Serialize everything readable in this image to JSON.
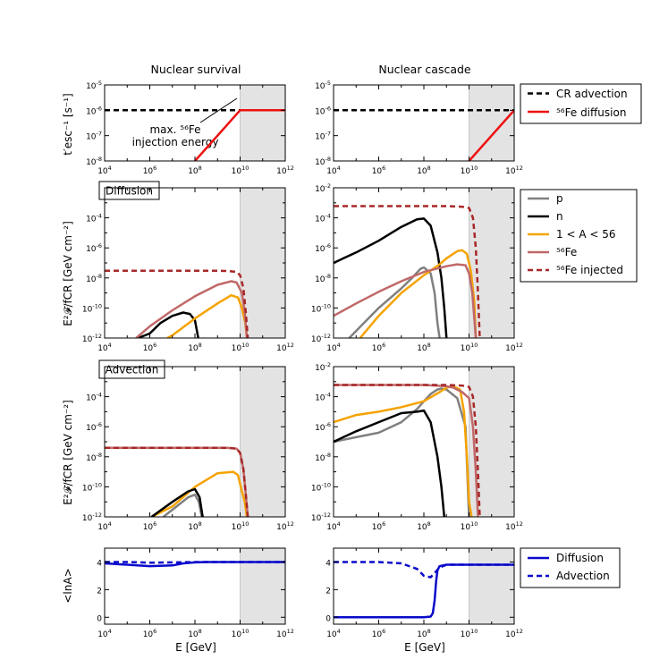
{
  "column_titles": [
    "Nuclear survival",
    "Nuclear cascade"
  ],
  "labels": {
    "rate_ylabel": "t′esc⁻¹ [s⁻¹]",
    "flux_ylabel": "E²𝓕/fCR [GeV cm⁻²]",
    "lnA_ylabel": "<lnA>",
    "xlabel": "E [GeV]"
  },
  "annotation": {
    "line1": "max. ⁵⁶Fe",
    "line2": "injection energy"
  },
  "row_boxes": [
    "Diffusion",
    "Advection"
  ],
  "legends": {
    "rate": [
      {
        "label": "CR advection",
        "color": "#000000",
        "dash": true
      },
      {
        "label": "⁵⁶Fe diffusion",
        "color": "#ee1111",
        "dash": false
      }
    ],
    "flux": [
      {
        "label": "p",
        "color": "#808080",
        "dash": false
      },
      {
        "label": "n",
        "color": "#000000",
        "dash": false
      },
      {
        "label": "1 < A < 56",
        "color": "#f5a300",
        "dash": false
      },
      {
        "label": "⁵⁶Fe",
        "color": "#c06868",
        "dash": false
      },
      {
        "label": "⁵⁶Fe injected",
        "color": "#a82828",
        "dash": true
      }
    ],
    "lnA": [
      {
        "label": "Diffusion",
        "color": "#0a0acc",
        "dash": false
      },
      {
        "label": "Advection",
        "color": "#0a0acc",
        "dash": true
      }
    ]
  },
  "chart_data": [
    {
      "id": "rate-survival",
      "type": "line",
      "xscale": "log",
      "yscale": "log",
      "xlim": [
        10000.0,
        1000000000000.0
      ],
      "ylim": [
        1e-08,
        1e-05
      ],
      "shade_from": 10000000000.0,
      "xticks": [
        "10^4",
        "10^6",
        "10^8",
        "10^10",
        "10^12"
      ],
      "yticks": [
        "10^-8",
        "10^-7",
        "10^-6",
        "10^-5"
      ],
      "series": [
        {
          "name": "CR advection",
          "x": [
            10000.0,
            1000000000000.0
          ],
          "y": [
            1e-06,
            1e-06
          ]
        },
        {
          "name": "56Fe diffusion",
          "x": [
            100000000.0,
            10000000000.0,
            1000000000000.0
          ],
          "y": [
            1e-08,
            1e-06,
            1e-06
          ]
        }
      ]
    },
    {
      "id": "rate-cascade",
      "type": "line",
      "xscale": "log",
      "yscale": "log",
      "xlim": [
        10000.0,
        1000000000000.0
      ],
      "ylim": [
        1e-08,
        1e-05
      ],
      "shade_from": 10000000000.0,
      "xticks": [
        "10^4",
        "10^6",
        "10^8",
        "10^10",
        "10^12"
      ],
      "yticks": [
        "10^-8",
        "10^-7",
        "10^-6",
        "10^-5"
      ],
      "series": [
        {
          "name": "CR advection",
          "x": [
            10000.0,
            1000000000000.0
          ],
          "y": [
            1e-06,
            1e-06
          ]
        },
        {
          "name": "56Fe diffusion",
          "x": [
            10000000000.0,
            1000000000000.0
          ],
          "y": [
            1e-08,
            1e-06
          ]
        }
      ]
    },
    {
      "id": "flux-diffusion-survival",
      "type": "line",
      "xscale": "log",
      "yscale": "log",
      "xlim": [
        10000.0,
        1000000000000.0
      ],
      "ylim": [
        1e-12,
        0.01
      ],
      "shade_from": 10000000000.0,
      "xticks": [
        "10^4",
        "10^6",
        "10^8",
        "10^10",
        "10^12"
      ],
      "yticks": [
        "10^-12",
        "10^-10",
        "10^-8",
        "10^-6",
        "10^-4"
      ],
      "series": [
        {
          "name": "n",
          "x": [
            300000.0,
            1000000.0,
            3000000.0,
            10000000.0,
            30000000.0,
            60000000.0,
            100000000.0,
            140000000.0
          ],
          "y": [
            1e-12,
            2e-12,
            1e-11,
            3e-11,
            5e-11,
            4e-11,
            1.5e-11,
            1e-12
          ]
        },
        {
          "name": "1 < A < 56",
          "x": [
            6000000.0,
            10000000.0,
            100000000.0,
            1000000000.0,
            4000000000.0,
            8000000000.0,
            12000000000.0,
            17000000000.0,
            20000000000.0
          ],
          "y": [
            1e-12,
            1.5e-12,
            2e-11,
            2e-10,
            7e-10,
            5e-10,
            1e-10,
            1e-11,
            1e-12
          ]
        },
        {
          "name": "56Fe",
          "x": [
            250000.0,
            1000000.0,
            10000000.0,
            100000000.0,
            1000000000.0,
            4000000000.0,
            7000000000.0,
            12000000000.0,
            16000000000.0,
            20000000000.0
          ],
          "y": [
            1e-12,
            6e-12,
            7e-11,
            6e-10,
            3.5e-09,
            6e-09,
            5e-09,
            1e-09,
            5e-11,
            1e-12
          ]
        },
        {
          "name": "56Fe injected",
          "x": [
            10000.0,
            1000000.0,
            100000000.0,
            1000000000.0,
            3000000000.0,
            7000000000.0,
            10000000000.0,
            14000000000.0,
            18000000000.0,
            22000000000.0
          ],
          "y": [
            3e-08,
            3e-08,
            3e-08,
            3e-08,
            2.9e-08,
            2.5e-08,
            1.5e-08,
            2e-09,
            5e-11,
            1e-12
          ]
        }
      ]
    },
    {
      "id": "flux-diffusion-cascade",
      "type": "line",
      "xscale": "log",
      "yscale": "log",
      "xlim": [
        10000.0,
        1000000000000.0
      ],
      "ylim": [
        1e-12,
        0.01
      ],
      "shade_from": 10000000000.0,
      "xticks": [
        "10^4",
        "10^6",
        "10^8",
        "10^10",
        "10^12"
      ],
      "yticks": [
        "10^-12",
        "10^-10",
        "10^-8",
        "10^-6",
        "10^-4",
        "10^-2"
      ],
      "series": [
        {
          "name": "p",
          "x": [
            50000.0,
            100000.0,
            1000000.0,
            10000000.0,
            30000000.0,
            70000000.0,
            100000000.0,
            200000000.0,
            300000000.0,
            400000000.0,
            500000000.0
          ],
          "y": [
            1e-12,
            3e-12,
            1e-10,
            2e-09,
            1e-08,
            4e-08,
            5e-08,
            2e-08,
            1e-09,
            1e-11,
            1e-12
          ]
        },
        {
          "name": "n",
          "x": [
            10000.0,
            100000.0,
            1000000.0,
            10000000.0,
            50000000.0,
            100000000.0,
            200000000.0,
            400000000.0,
            600000000.0,
            800000000.0,
            1000000000.0
          ],
          "y": [
            1e-07,
            5e-07,
            3e-06,
            2.5e-05,
            8e-05,
            9e-05,
            3e-05,
            5e-07,
            1e-08,
            1e-10,
            1e-12
          ]
        },
        {
          "name": "1 < A < 56",
          "x": [
            150000.0,
            1000000.0,
            10000000.0,
            100000000.0,
            500000000.0,
            1000000000.0,
            3000000000.0,
            5000000000.0,
            8000000000.0,
            12000000000.0,
            17000000000.0,
            20000000000.0
          ],
          "y": [
            1e-12,
            3e-11,
            1e-09,
            1.5e-08,
            8e-08,
            2e-07,
            6e-07,
            7e-07,
            4e-07,
            3e-08,
            3e-10,
            1e-12
          ]
        },
        {
          "name": "56Fe",
          "x": [
            10000.0,
            100000.0,
            1000000.0,
            10000000.0,
            100000000.0,
            1000000000.0,
            3000000000.0,
            7000000000.0,
            10000000000.0,
            14000000000.0,
            20000000000.0
          ],
          "y": [
            3e-11,
            2e-10,
            1.2e-09,
            6e-09,
            2.5e-08,
            6e-08,
            8e-08,
            7e-08,
            2e-08,
            1e-09,
            1e-12
          ]
        },
        {
          "name": "56Fe injected",
          "x": [
            10000.0,
            1000000000.0,
            5000000000.0,
            10000000000.0,
            15000000000.0,
            20000000000.0,
            25000000000.0,
            30000000000.0
          ],
          "y": [
            0.0006,
            0.0006,
            0.00055,
            0.00045,
            0.0001,
            1e-06,
            1e-09,
            1e-12
          ]
        }
      ]
    },
    {
      "id": "flux-advection-survival",
      "type": "line",
      "xscale": "log",
      "yscale": "log",
      "xlim": [
        10000.0,
        1000000000000.0
      ],
      "ylim": [
        1e-12,
        0.01
      ],
      "shade_from": 10000000000.0,
      "xticks": [
        "10^4",
        "10^6",
        "10^8",
        "10^10",
        "10^12"
      ],
      "yticks": [
        "10^-12",
        "10^-10",
        "10^-8",
        "10^-6",
        "10^-4"
      ],
      "series": [
        {
          "name": "1 < A < 56",
          "x": [
            1200000.0,
            10000000.0,
            100000000.0,
            1000000000.0,
            5000000000.0,
            8000000000.0,
            12000000000.0,
            16000000000.0,
            20000000000.0
          ],
          "y": [
            1e-12,
            5e-12,
            1e-10,
            8e-10,
            1e-09,
            6e-10,
            5e-11,
            1e-11,
            1e-12
          ]
        },
        {
          "name": "p",
          "x": [
            4000000.0,
            10000000.0,
            50000000.0,
            100000000.0,
            150000000.0,
            200000000.0
          ],
          "y": [
            1e-12,
            3e-12,
            2e-11,
            3e-11,
            1e-11,
            1e-12
          ]
        },
        {
          "name": "n",
          "x": [
            1200000.0,
            10000000.0,
            50000000.0,
            100000000.0,
            160000000.0,
            220000000.0,
            250000000.0
          ],
          "y": [
            1e-12,
            1e-11,
            5e-11,
            7e-11,
            2e-11,
            1e-12,
            1e-12
          ]
        },
        {
          "name": "56Fe",
          "x": [
            10000.0,
            1000000000.0,
            3000000000.0,
            7000000000.0,
            10000000000.0,
            14000000000.0,
            18000000000.0,
            22000000000.0
          ],
          "y": [
            4e-08,
            4e-08,
            3.9e-08,
            3.5e-08,
            1.8e-08,
            1.5e-09,
            3e-11,
            1e-12
          ]
        },
        {
          "name": "56Fe injected",
          "x": [
            10000.0,
            1000000000.0,
            3000000000.0,
            7000000000.0,
            10000000000.0,
            14000000000.0,
            18000000000.0,
            22000000000.0
          ],
          "y": [
            4e-08,
            4e-08,
            3.9e-08,
            3.5e-08,
            1.8e-08,
            1.5e-09,
            3e-11,
            1e-12
          ]
        }
      ]
    },
    {
      "id": "flux-advection-cascade",
      "type": "line",
      "xscale": "log",
      "yscale": "log",
      "xlim": [
        10000.0,
        1000000000000.0
      ],
      "ylim": [
        1e-12,
        0.01
      ],
      "shade_from": 10000000000.0,
      "xticks": [
        "10^4",
        "10^6",
        "10^8",
        "10^10",
        "10^12"
      ],
      "yticks": [
        "10^-12",
        "10^-10",
        "10^-8",
        "10^-6",
        "10^-4",
        "10^-2"
      ],
      "series": [
        {
          "name": "p",
          "x": [
            10000.0,
            100000.0,
            1000000.0,
            10000000.0,
            50000000.0,
            100000000.0,
            200000000.0,
            400000000.0,
            600000000.0,
            1000000000.0,
            3000000000.0,
            7000000000.0,
            10000000000.0
          ],
          "y": [
            1e-07,
            2e-07,
            4e-07,
            2e-06,
            1.5e-05,
            5e-05,
            0.00015,
            0.0003,
            0.00035,
            0.0003,
            8e-05,
            1e-06,
            1e-12
          ]
        },
        {
          "name": "n",
          "x": [
            10000.0,
            100000.0,
            1000000.0,
            10000000.0,
            50000000.0,
            100000000.0,
            200000000.0,
            400000000.0,
            600000000.0,
            800000000.0,
            900000000.0
          ],
          "y": [
            1e-07,
            5e-07,
            2e-06,
            8e-06,
            1e-05,
            1.2e-05,
            2e-06,
            1e-08,
            1e-10,
            1e-12,
            1e-12
          ]
        },
        {
          "name": "1 < A < 56",
          "x": [
            10000.0,
            100000.0,
            1000000.0,
            10000000.0,
            100000000.0,
            500000000.0,
            1000000000.0,
            2000000000.0,
            4000000000.0,
            6000000000.0,
            8000000000.0,
            10000000000.0,
            13000000000.0
          ],
          "y": [
            2e-06,
            6e-06,
            1e-05,
            2e-05,
            5e-05,
            0.0002,
            0.0004,
            0.0005,
            0.0003,
            1e-05,
            1e-08,
            1e-11,
            1e-12
          ]
        },
        {
          "name": "56Fe",
          "x": [
            10000.0,
            1000000.0,
            100000000.0,
            1000000000.0,
            2000000000.0,
            5000000000.0,
            10000000000.0,
            15000000000.0,
            20000000000.0,
            25000000000.0
          ],
          "y": [
            0.0006,
            0.0006,
            0.0006,
            0.0005,
            0.0004,
            0.0002,
            8e-05,
            1e-06,
            1e-09,
            1e-12
          ]
        },
        {
          "name": "56Fe injected",
          "x": [
            10000.0,
            1000000000.0,
            5000000000.0,
            10000000000.0,
            15000000000.0,
            20000000000.0,
            25000000000.0,
            30000000000.0
          ],
          "y": [
            0.0006,
            0.0006,
            0.00055,
            0.00045,
            0.0001,
            1e-06,
            1e-09,
            1e-12
          ]
        }
      ]
    },
    {
      "id": "lnA-survival",
      "type": "line",
      "xscale": "log",
      "yscale": "linear",
      "xlim": [
        10000.0,
        1000000000000.0
      ],
      "ylim": [
        -0.5,
        5
      ],
      "shade_from": 10000000000.0,
      "xticks": [
        "10^4",
        "10^6",
        "10^8",
        "10^10",
        "10^12"
      ],
      "yticks": [
        "0",
        "2",
        "4"
      ],
      "series": [
        {
          "name": "Diffusion",
          "x": [
            10000.0,
            100000.0,
            1000000.0,
            10000000.0,
            30000000.0,
            100000000.0,
            300000000.0,
            1000000000.0,
            10000000000.0,
            1000000000000.0
          ],
          "y": [
            3.9,
            3.8,
            3.7,
            3.75,
            3.9,
            3.97,
            4.0,
            4.0,
            4.0,
            4.0
          ]
        },
        {
          "name": "Advection",
          "x": [
            10000.0,
            100000.0,
            1000000.0,
            10000000.0,
            100000000.0,
            1000000000.0,
            10000000000.0,
            1000000000000.0
          ],
          "y": [
            4.0,
            4.0,
            3.95,
            3.97,
            4.0,
            4.0,
            4.0,
            4.0
          ]
        }
      ]
    },
    {
      "id": "lnA-cascade",
      "type": "line",
      "xscale": "log",
      "yscale": "linear",
      "xlim": [
        10000.0,
        1000000000000.0
      ],
      "ylim": [
        -0.5,
        5
      ],
      "shade_from": 10000000000.0,
      "xticks": [
        "10^4",
        "10^6",
        "10^8",
        "10^10",
        "10^12"
      ],
      "yticks": [
        "0",
        "2",
        "4"
      ],
      "series": [
        {
          "name": "Diffusion",
          "x": [
            10000.0,
            100000000.0,
            200000000.0,
            250000000.0,
            300000000.0,
            350000000.0,
            400000000.0,
            500000000.0,
            700000000.0,
            1000000000.0,
            10000000000.0,
            1000000000000.0
          ],
          "y": [
            0.0,
            0.0,
            0.05,
            0.3,
            1.2,
            2.6,
            3.4,
            3.7,
            3.75,
            3.8,
            3.8,
            3.8
          ]
        },
        {
          "name": "Advection",
          "x": [
            10000.0,
            1000000.0,
            10000000.0,
            50000000.0,
            100000000.0,
            200000000.0,
            300000000.0,
            500000000.0,
            1000000000.0,
            10000000000.0,
            1000000000000.0
          ],
          "y": [
            4.0,
            4.0,
            3.9,
            3.5,
            3.0,
            2.9,
            3.2,
            3.6,
            3.8,
            3.8,
            3.8
          ]
        }
      ]
    }
  ]
}
